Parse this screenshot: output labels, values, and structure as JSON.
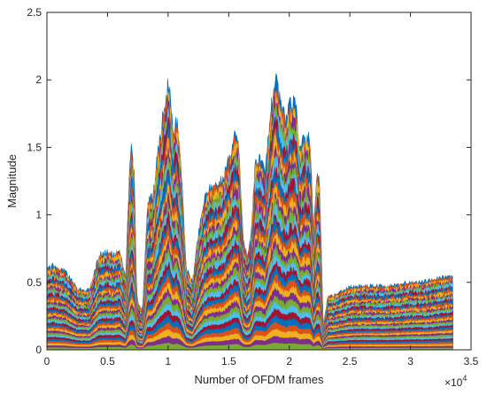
{
  "chart_data": {
    "type": "area",
    "title": "",
    "xlabel": "Number of OFDM frames",
    "ylabel": "Magnitude",
    "x_exponent_label": "×10",
    "x_exponent_power": "4",
    "xlim": [
      0,
      35000
    ],
    "ylim": [
      0,
      2.5
    ],
    "xticks": [
      0,
      5000,
      10000,
      15000,
      20000,
      25000,
      30000,
      35000
    ],
    "xtick_labels": [
      "0",
      "0.5",
      "1",
      "1.5",
      "2",
      "2.5",
      "3",
      "3.5"
    ],
    "yticks": [
      0,
      0.5,
      1,
      1.5,
      2,
      2.5
    ],
    "ytick_labels": [
      "0",
      "0.5",
      "1",
      "1.5",
      "2",
      "2.5"
    ],
    "grid": false,
    "legend": "none",
    "series_count": 40,
    "x_max_data": 33500,
    "envelope": {
      "x": [
        0,
        500,
        1500,
        2500,
        3500,
        4300,
        5000,
        5500,
        6000,
        6500,
        6800,
        7000,
        7200,
        7400,
        7600,
        7900,
        8300,
        8700,
        9200,
        9600,
        9900,
        10000,
        10100,
        10400,
        10700,
        11000,
        11500,
        12000,
        12500,
        13000,
        13500,
        14000,
        14500,
        15000,
        15500,
        15800,
        16200,
        16500,
        16800,
        17200,
        17600,
        18000,
        18400,
        18800,
        19000,
        19300,
        19700,
        20100,
        20500,
        20900,
        21300,
        21700,
        22000,
        22300,
        22500,
        22800,
        23200,
        23600,
        24000,
        25000,
        26000,
        27000,
        28000,
        29000,
        30000,
        31000,
        32000,
        33000,
        33500
      ],
      "y": [
        0.6,
        0.62,
        0.58,
        0.45,
        0.44,
        0.7,
        0.72,
        0.7,
        0.74,
        0.52,
        1.3,
        1.52,
        1.3,
        0.42,
        0.32,
        0.3,
        1.1,
        1.12,
        1.48,
        1.75,
        1.9,
        2.0,
        1.92,
        1.6,
        1.7,
        1.46,
        0.6,
        0.5,
        0.85,
        1.12,
        1.2,
        1.22,
        1.25,
        1.4,
        1.58,
        1.55,
        0.82,
        0.7,
        0.8,
        1.4,
        1.4,
        1.3,
        1.7,
        2.0,
        1.95,
        1.8,
        1.7,
        1.82,
        1.82,
        1.5,
        1.58,
        1.55,
        0.9,
        1.3,
        1.22,
        0.18,
        0.4,
        0.4,
        0.42,
        0.46,
        0.47,
        0.47,
        0.47,
        0.48,
        0.5,
        0.5,
        0.52,
        0.54,
        0.55
      ]
    }
  },
  "colors": {
    "series": [
      "#0072BD",
      "#D95319",
      "#EDB120",
      "#7E2F8E",
      "#77AC30",
      "#4DBEEE",
      "#A2142F"
    ],
    "axes": "#262626",
    "background": "#ffffff"
  }
}
